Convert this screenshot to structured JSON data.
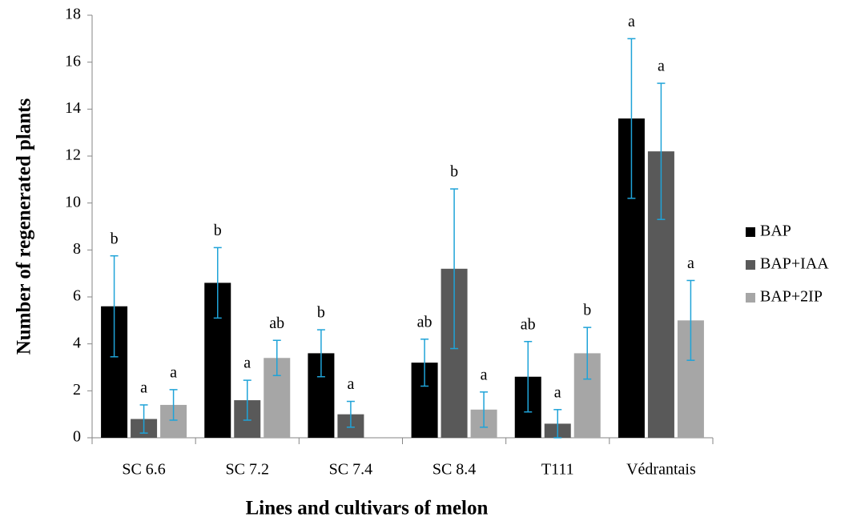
{
  "chart_data": {
    "type": "bar",
    "y_label": "Number of regenerated plants",
    "x_label": "Lines and cultivars of melon",
    "categories": [
      "SC 6.6",
      "SC 7.2",
      "SC 7.4",
      "SC 8.4",
      "T111",
      "Védrantais"
    ],
    "series": [
      {
        "name": "BAP",
        "color": "#000000",
        "values": [
          5.6,
          6.6,
          3.6,
          3.2,
          2.6,
          13.6
        ],
        "errors": [
          2.15,
          1.5,
          1.0,
          1.0,
          1.5,
          3.4
        ],
        "labels": [
          "b",
          "b",
          "b",
          "ab",
          "ab",
          "a"
        ],
        "label_colors": [
          "#7030a0",
          "#7030a0",
          "#7030a0",
          "#1f3864",
          "#1f3864",
          "#c00000"
        ]
      },
      {
        "name": "BAP+IAA",
        "color": "#595959",
        "values": [
          0.8,
          1.6,
          1.0,
          7.2,
          0.6,
          12.2
        ],
        "errors": [
          0.6,
          0.85,
          0.55,
          3.4,
          0.6,
          2.9
        ],
        "labels": [
          "a",
          "a",
          "a",
          "b",
          "a",
          "a"
        ],
        "label_colors": [
          "#c00000",
          "#c00000",
          "#c00000",
          "#7030a0",
          "#c00000",
          "#c00000"
        ]
      },
      {
        "name": "BAP+2IP",
        "color": "#a6a6a6",
        "values": [
          1.4,
          3.4,
          0,
          1.2,
          3.6,
          5.0
        ],
        "errors": [
          0.65,
          0.75,
          0,
          0.75,
          1.1,
          1.7
        ],
        "labels": [
          "a",
          "ab",
          null,
          "a",
          "b",
          "a"
        ],
        "label_colors": [
          "#c00000",
          "#44546a",
          null,
          "#c00000",
          "#7030a0",
          "#c00000"
        ]
      }
    ],
    "error_color": "#1fa3d8",
    "ylim": [
      0,
      18
    ],
    "yticks": [
      0,
      2,
      4,
      6,
      8,
      10,
      12,
      14,
      16,
      18
    ]
  }
}
